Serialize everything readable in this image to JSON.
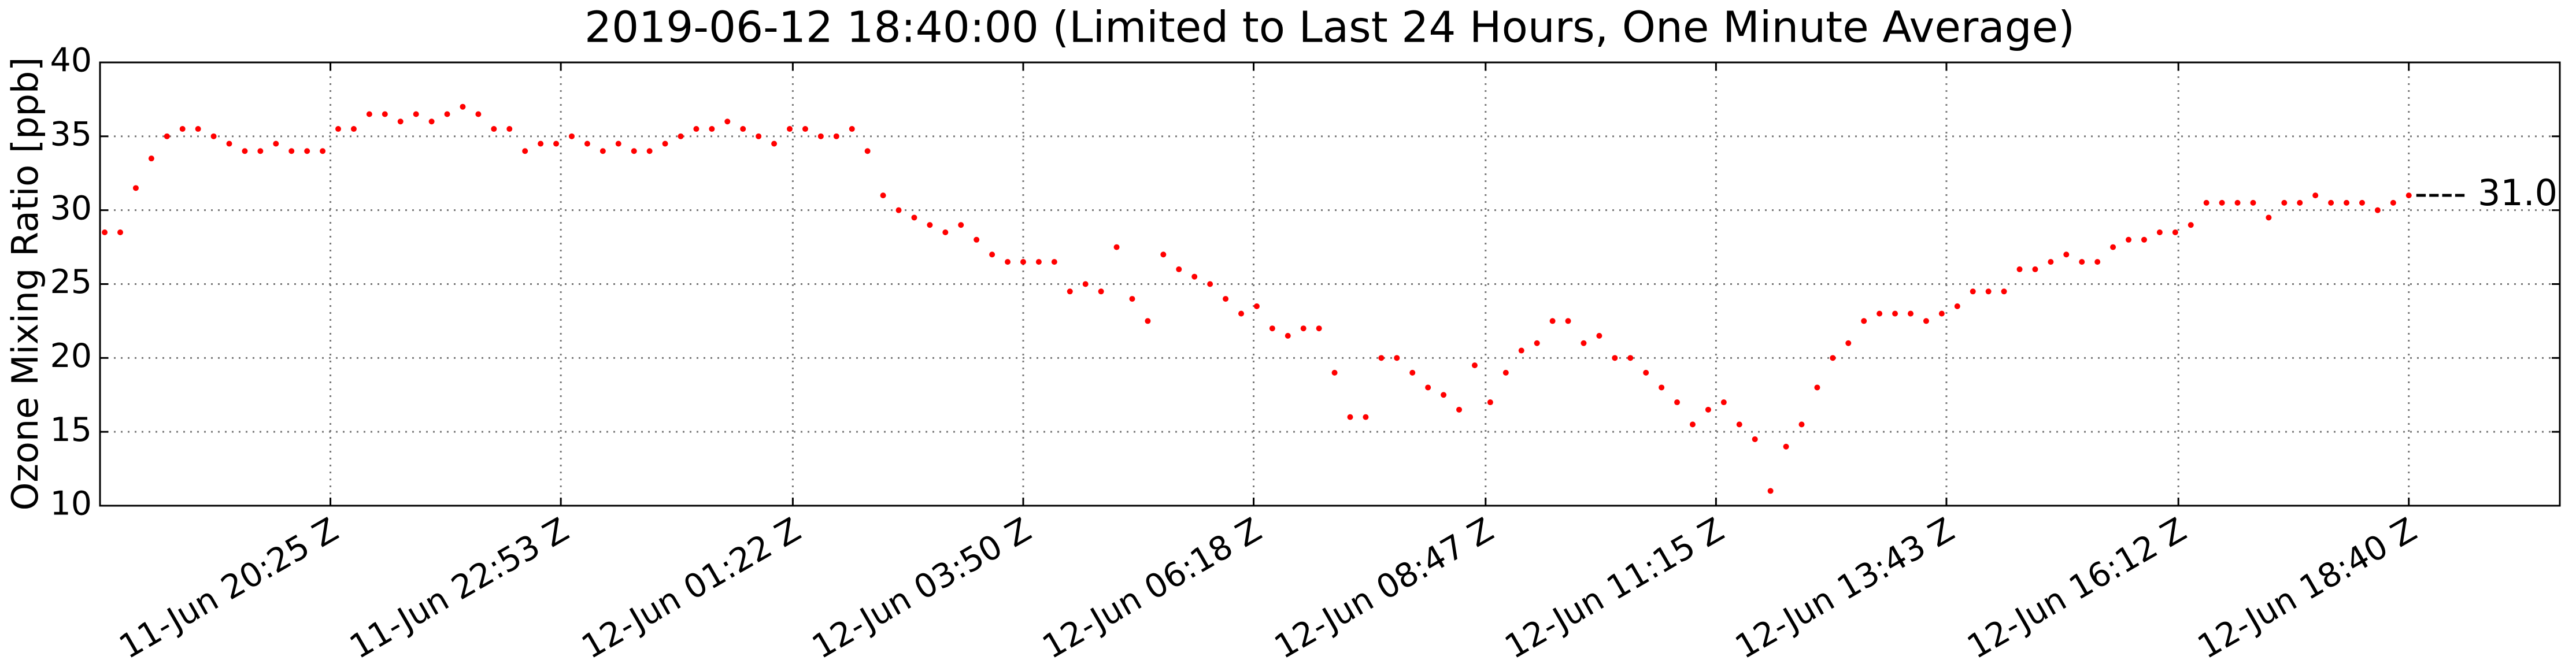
{
  "chart_data": {
    "type": "scatter",
    "title": "2019-06-12 18:40:00 (Limited to Last 24 Hours, One Minute Average)",
    "y_label": "Ozone Mixing Ratio [ppb]",
    "annotation": "---- 31.0",
    "color": "#ff0000",
    "grid": true,
    "ylim": [
      10,
      40
    ],
    "yticks": [
      10,
      15,
      20,
      25,
      30,
      35,
      40
    ],
    "xlim": [
      "2019-06-11T17:57",
      "2019-06-12T20:17"
    ],
    "xticks": [
      {
        "value": "2019-06-11T20:25",
        "label": "11-Jun 20:25 Z"
      },
      {
        "value": "2019-06-11T22:53",
        "label": "11-Jun 22:53 Z"
      },
      {
        "value": "2019-06-12T01:22",
        "label": "12-Jun 01:22 Z"
      },
      {
        "value": "2019-06-12T03:50",
        "label": "12-Jun 03:50 Z"
      },
      {
        "value": "2019-06-12T06:18",
        "label": "12-Jun 06:18 Z"
      },
      {
        "value": "2019-06-12T08:47",
        "label": "12-Jun 08:47 Z"
      },
      {
        "value": "2019-06-12T11:15",
        "label": "12-Jun 11:15 Z"
      },
      {
        "value": "2019-06-12T13:43",
        "label": "12-Jun 13:43 Z"
      },
      {
        "value": "2019-06-12T16:12",
        "label": "12-Jun 16:12 Z"
      },
      {
        "value": "2019-06-12T18:40",
        "label": "12-Jun 18:40 Z"
      }
    ],
    "x": [
      "2019-06-11T18:00",
      "2019-06-11T18:10",
      "2019-06-11T18:20",
      "2019-06-11T18:30",
      "2019-06-11T18:40",
      "2019-06-11T18:50",
      "2019-06-11T19:00",
      "2019-06-11T19:10",
      "2019-06-11T19:20",
      "2019-06-11T19:30",
      "2019-06-11T19:40",
      "2019-06-11T19:50",
      "2019-06-11T20:00",
      "2019-06-11T20:10",
      "2019-06-11T20:20",
      "2019-06-11T20:30",
      "2019-06-11T20:40",
      "2019-06-11T20:50",
      "2019-06-11T21:00",
      "2019-06-11T21:10",
      "2019-06-11T21:20",
      "2019-06-11T21:30",
      "2019-06-11T21:40",
      "2019-06-11T21:50",
      "2019-06-11T22:00",
      "2019-06-11T22:10",
      "2019-06-11T22:20",
      "2019-06-11T22:30",
      "2019-06-11T22:40",
      "2019-06-11T22:50",
      "2019-06-11T23:00",
      "2019-06-11T23:10",
      "2019-06-11T23:20",
      "2019-06-11T23:30",
      "2019-06-11T23:40",
      "2019-06-11T23:50",
      "2019-06-12T00:00",
      "2019-06-12T00:10",
      "2019-06-12T00:20",
      "2019-06-12T00:30",
      "2019-06-12T00:40",
      "2019-06-12T00:50",
      "2019-06-12T01:00",
      "2019-06-12T01:10",
      "2019-06-12T01:20",
      "2019-06-12T01:30",
      "2019-06-12T01:40",
      "2019-06-12T01:50",
      "2019-06-12T02:00",
      "2019-06-12T02:10",
      "2019-06-12T02:20",
      "2019-06-12T02:30",
      "2019-06-12T02:40",
      "2019-06-12T02:50",
      "2019-06-12T03:00",
      "2019-06-12T03:10",
      "2019-06-12T03:20",
      "2019-06-12T03:30",
      "2019-06-12T03:40",
      "2019-06-12T03:50",
      "2019-06-12T04:00",
      "2019-06-12T04:10",
      "2019-06-12T04:20",
      "2019-06-12T04:30",
      "2019-06-12T04:40",
      "2019-06-12T04:50",
      "2019-06-12T05:00",
      "2019-06-12T05:10",
      "2019-06-12T05:20",
      "2019-06-12T05:30",
      "2019-06-12T05:40",
      "2019-06-12T05:50",
      "2019-06-12T06:00",
      "2019-06-12T06:10",
      "2019-06-12T06:20",
      "2019-06-12T06:30",
      "2019-06-12T06:40",
      "2019-06-12T06:50",
      "2019-06-12T07:00",
      "2019-06-12T07:10",
      "2019-06-12T07:20",
      "2019-06-12T07:30",
      "2019-06-12T07:40",
      "2019-06-12T07:50",
      "2019-06-12T08:00",
      "2019-06-12T08:10",
      "2019-06-12T08:20",
      "2019-06-12T08:30",
      "2019-06-12T08:40",
      "2019-06-12T08:50",
      "2019-06-12T09:00",
      "2019-06-12T09:10",
      "2019-06-12T09:20",
      "2019-06-12T09:30",
      "2019-06-12T09:40",
      "2019-06-12T09:50",
      "2019-06-12T10:00",
      "2019-06-12T10:10",
      "2019-06-12T10:20",
      "2019-06-12T10:30",
      "2019-06-12T10:40",
      "2019-06-12T10:50",
      "2019-06-12T11:00",
      "2019-06-12T11:10",
      "2019-06-12T11:20",
      "2019-06-12T11:30",
      "2019-06-12T11:40",
      "2019-06-12T11:50",
      "2019-06-12T12:00",
      "2019-06-12T12:10",
      "2019-06-12T12:20",
      "2019-06-12T12:30",
      "2019-06-12T12:40",
      "2019-06-12T12:50",
      "2019-06-12T13:00",
      "2019-06-12T13:10",
      "2019-06-12T13:20",
      "2019-06-12T13:30",
      "2019-06-12T13:40",
      "2019-06-12T13:50",
      "2019-06-12T14:00",
      "2019-06-12T14:10",
      "2019-06-12T14:20",
      "2019-06-12T14:30",
      "2019-06-12T14:40",
      "2019-06-12T14:50",
      "2019-06-12T15:00",
      "2019-06-12T15:10",
      "2019-06-12T15:20",
      "2019-06-12T15:30",
      "2019-06-12T15:40",
      "2019-06-12T15:50",
      "2019-06-12T16:00",
      "2019-06-12T16:10",
      "2019-06-12T16:20",
      "2019-06-12T16:30",
      "2019-06-12T16:40",
      "2019-06-12T16:50",
      "2019-06-12T17:00",
      "2019-06-12T17:10",
      "2019-06-12T17:20",
      "2019-06-12T17:30",
      "2019-06-12T17:40",
      "2019-06-12T17:50",
      "2019-06-12T18:00",
      "2019-06-12T18:10",
      "2019-06-12T18:20",
      "2019-06-12T18:30",
      "2019-06-12T18:40"
    ],
    "values": [
      28.5,
      28.5,
      31.5,
      33.5,
      35,
      35.5,
      35.5,
      35,
      34.5,
      34,
      34,
      34.5,
      34,
      34,
      34,
      35.5,
      35.5,
      36.5,
      36.5,
      36,
      36.5,
      36,
      36.5,
      37,
      36.5,
      35.5,
      35.5,
      34,
      34.5,
      34.5,
      35,
      34.5,
      34,
      34.5,
      34,
      34,
      34.5,
      35,
      35.5,
      35.5,
      36,
      35.5,
      35,
      34.5,
      35.5,
      35.5,
      35,
      35,
      35.5,
      34,
      31,
      30,
      29.5,
      29,
      28.5,
      29,
      28,
      27,
      26.5,
      26.5,
      26.5,
      26.5,
      24.5,
      25,
      24.5,
      27.5,
      24,
      22.5,
      27,
      26,
      25.5,
      25,
      24,
      23,
      23.5,
      22,
      21.5,
      22,
      22,
      19,
      16,
      16,
      20,
      20,
      19,
      18,
      17.5,
      16.5,
      19.5,
      17,
      19,
      20.5,
      21,
      22.5,
      22.5,
      21,
      21.5,
      20,
      20,
      19,
      18,
      17,
      15.5,
      16.5,
      17,
      15.5,
      14.5,
      11,
      14,
      15.5,
      18,
      20,
      21,
      22.5,
      23,
      23,
      23,
      22.5,
      23,
      23.5,
      24.5,
      24.5,
      24.5,
      26,
      26,
      26.5,
      27,
      26.5,
      26.5,
      27.5,
      28,
      28,
      28.5,
      28.5,
      29,
      30.5,
      30.5,
      30.5,
      30.5,
      29.5,
      30.5,
      30.5,
      31,
      30.5,
      30.5,
      30.5,
      30,
      30.5,
      31
    ]
  }
}
